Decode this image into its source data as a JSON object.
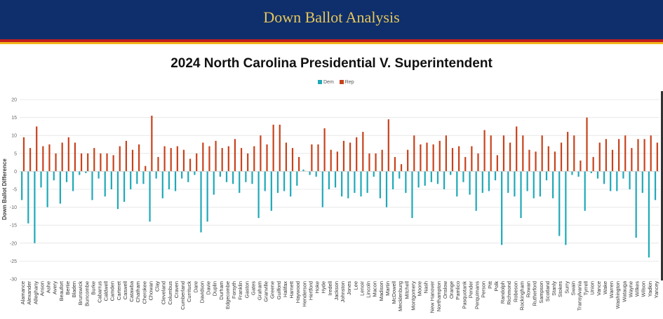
{
  "header": {
    "title": "Down Ballot Analysis"
  },
  "colors": {
    "banner": "#0e2f6b",
    "stripe_red": "#c41e1e",
    "stripe_yellow": "#f2b71b",
    "dem": "#1fa9b8",
    "rep": "#c7421c"
  },
  "chart_data": {
    "type": "bar",
    "title": "2024 North Carolina Presidential V. Superintendent",
    "xlabel": "",
    "ylabel": "Down Ballot Difference",
    "ylim": [
      -30,
      20
    ],
    "yticks": [
      20,
      15,
      10,
      5,
      0,
      -5,
      -10,
      -15,
      -20,
      -25,
      -30
    ],
    "grid": true,
    "legend_position": "top-center",
    "categories": [
      "Alamance",
      "Alexander",
      "Alleghany",
      "Anson",
      "Ashe",
      "Avery",
      "Beaufort",
      "Bertie",
      "Bladen",
      "Brunswick",
      "Buncombe",
      "Burke",
      "Cabarrus",
      "Caldwell",
      "Camden",
      "Carteret",
      "Caswell",
      "Catawba",
      "Chatham",
      "Cherokee",
      "Chowan",
      "Clay",
      "Cleveland",
      "Columbus",
      "Craven",
      "Cumberland",
      "Currituck",
      "Dare",
      "Davidson",
      "Davie",
      "Duplin",
      "Durham",
      "Edgecombe",
      "Forsyth",
      "Franklin",
      "Gaston",
      "Gates",
      "Graham",
      "Granville",
      "Greene",
      "Guilford",
      "Halifax",
      "Harnett",
      "Haywood",
      "Henderson",
      "Hertford",
      "Hoke",
      "Hyde",
      "Iredell",
      "Jackson",
      "Johnston",
      "Jones",
      "Lee",
      "Lenoir",
      "Lincoln",
      "Macon",
      "Madison",
      "Martin",
      "McDowell",
      "Mecklenburg",
      "Mitchell",
      "Montgomery",
      "Moore",
      "Nash",
      "New Hanover",
      "Northampton",
      "Onslow",
      "Orange",
      "Pamlico",
      "Pasquotank",
      "Pender",
      "Perquimans",
      "Person",
      "Pitt",
      "Polk",
      "Randolph",
      "Richmond",
      "Robeson",
      "Rockingham",
      "Rowan",
      "Rutherford",
      "Sampson",
      "Scotland",
      "Stanly",
      "Stokes",
      "Surry",
      "Swain",
      "Transylvania",
      "Tyrrell",
      "Union",
      "Vance",
      "Wake",
      "Warren",
      "Washington",
      "Watauga",
      "Wayne",
      "Wilkes",
      "Wilson",
      "Yadkin",
      "Yancey"
    ],
    "series": [
      {
        "name": "Dem",
        "values": [
          -8,
          -14.5,
          -20,
          -4.5,
          -10,
          -2.5,
          -9,
          -3,
          -5.5,
          -1,
          -0.5,
          -8,
          -2,
          -7,
          -5,
          -10.5,
          -8.5,
          -5,
          -3.5,
          -3.5,
          -14,
          -2,
          -7.5,
          -5,
          -5.5,
          -2,
          -3,
          -1,
          -17,
          -14,
          -6.5,
          -1.5,
          -3,
          -3.5,
          -6,
          -3,
          -3.5,
          -13,
          -5.5,
          -11,
          -6,
          -5.5,
          -7,
          -4,
          0.5,
          -1,
          -1.5,
          -10,
          -5,
          -4.5,
          -7,
          -7.5,
          -6,
          -7,
          -6,
          -1.5,
          -7.5,
          -10,
          -5,
          -2,
          -6,
          -13,
          -4.5,
          -4,
          -3,
          -3.5,
          -5,
          -1,
          -7,
          -3,
          -6.5,
          -11,
          -6,
          -5.5,
          -2.5,
          -20.5,
          -6,
          -7,
          -13,
          -5.5,
          -7.5,
          -7,
          -2.5,
          -7.5,
          -18,
          -20.5,
          -1,
          -1.5,
          -11,
          -0.5,
          -2,
          -3.5,
          -5.5,
          -5.5,
          -2,
          -5,
          -18.5,
          -6,
          -24,
          -8
        ]
      },
      {
        "name": "Rep",
        "values": [
          9.5,
          6.5,
          12.5,
          7,
          7.5,
          5,
          8,
          9.5,
          8,
          5,
          5,
          6.5,
          5,
          5,
          4.5,
          7,
          8.5,
          6,
          7.5,
          1.5,
          15.5,
          4,
          7,
          6.5,
          7,
          6,
          3.5,
          5,
          8,
          7,
          8.5,
          6.5,
          7,
          9,
          6.5,
          5,
          7,
          10,
          7.5,
          13,
          13,
          8,
          6.5,
          4,
          0,
          7.5,
          7.5,
          12,
          6,
          5.5,
          8.5,
          8,
          9.5,
          11,
          5,
          5,
          6,
          14.5,
          4,
          2,
          6,
          10,
          7.5,
          8,
          7.5,
          8.5,
          10,
          6.5,
          7,
          4,
          7,
          5,
          11.5,
          10,
          4.5,
          10,
          8,
          12.5,
          10,
          6,
          5.5,
          10,
          7,
          5.5,
          8,
          11,
          10,
          3,
          15,
          4,
          8,
          9,
          6,
          9,
          10,
          6.5,
          9,
          9,
          10,
          8
        ]
      }
    ]
  }
}
